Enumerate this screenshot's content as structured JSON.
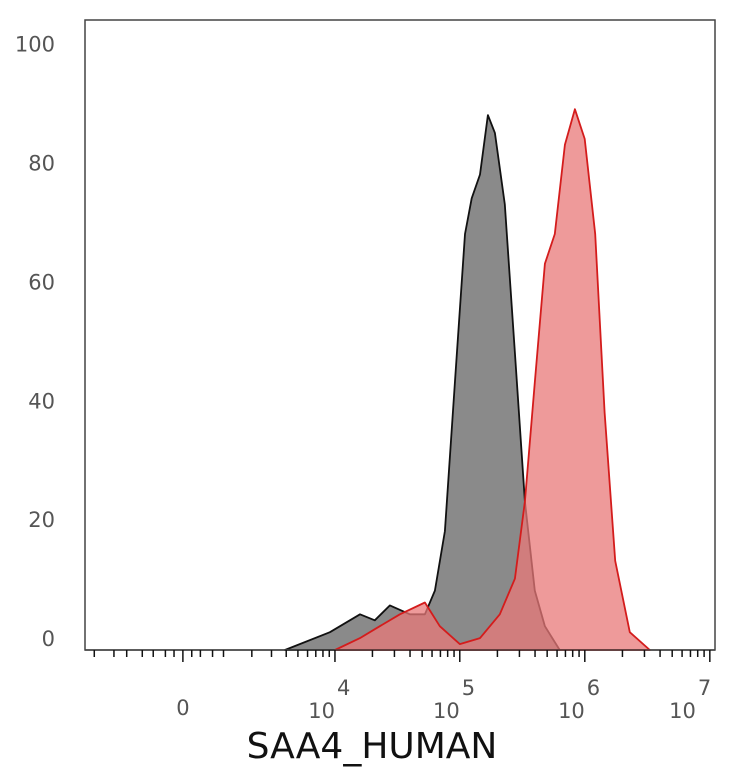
{
  "chart_data": {
    "type": "area",
    "x_label": "SAA4_HUMAN",
    "xscale": "asinh",
    "xlim": [
      -3600,
      11000000
    ],
    "xticks": [
      0,
      {
        "value": 10000,
        "label": "10",
        "exponent": "4"
      },
      {
        "value": 100000,
        "label": "10",
        "exponent": "5"
      },
      {
        "value": 1000000,
        "label": "10",
        "exponent": "6"
      },
      {
        "value": 10000000,
        "label": "10",
        "exponent": "7"
      }
    ],
    "minor_xticks": [
      -3000,
      -2000,
      -1500,
      -1000,
      -700,
      -400,
      -200,
      200,
      400,
      700,
      1000,
      2000,
      3000,
      4000,
      5000,
      6000,
      7000,
      8000,
      9000,
      20000,
      30000,
      40000,
      50000,
      60000,
      70000,
      80000,
      90000,
      200000,
      300000,
      400000,
      500000,
      600000,
      700000,
      800000,
      900000,
      2000000,
      3000000,
      4000000,
      5000000,
      6000000,
      7000000,
      8000000,
      9000000
    ],
    "ylim": [
      0,
      106
    ],
    "yticks": [
      0,
      20,
      40,
      60,
      80,
      100
    ],
    "series": [
      {
        "color": "#8a8a8a",
        "line_color": "#111111",
        "x": [
          3900,
          9100,
          15900,
          20900,
          27600,
          39900,
          52600,
          63200,
          76000,
          91400,
          110000,
          124500,
          145000,
          168000,
          191000,
          229000,
          276000,
          332000,
          398000,
          480000,
          630000
        ],
        "values": [
          0,
          3,
          6,
          5,
          7.5,
          6,
          6,
          10,
          20,
          45,
          70,
          76,
          80,
          90,
          87,
          75,
          50,
          25,
          10,
          4,
          0
        ]
      },
      {
        "color": "#e87878",
        "line_color": "#d41c1c",
        "x": [
          10000,
          15900,
          22900,
          33200,
          52600,
          69200,
          100000,
          145000,
          209000,
          276000,
          332000,
          398000,
          480000,
          576000,
          693000,
          833000,
          998000,
          1210000,
          1440000,
          1750000,
          2290000,
          3310000
        ],
        "values": [
          0,
          2,
          4,
          6,
          8,
          4,
          1,
          2,
          6,
          12,
          25,
          45,
          65,
          70,
          85,
          91,
          86,
          70,
          40,
          15,
          3,
          0
        ]
      }
    ]
  }
}
